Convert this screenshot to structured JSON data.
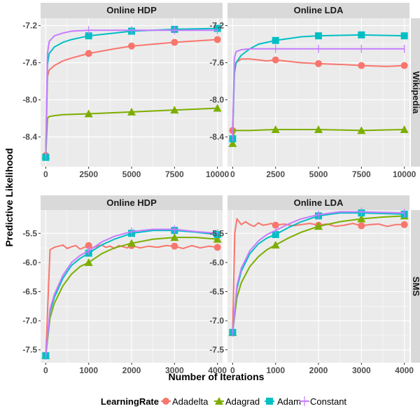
{
  "figure": {
    "xlabel": "Number of Iterations",
    "ylabel": "Predictive Likelihood",
    "legend_title": "LearningRate",
    "legend_position": "bottom"
  },
  "colors": {
    "Adadelta": "#F8766D",
    "Adagrad": "#7CAE00",
    "Adam": "#00BFC4",
    "Constant": "#C77CFF",
    "panel_bg": "#EBEBEB",
    "strip_bg": "#D9D9D9",
    "grid": "#FFFFFF"
  },
  "chart_data": [
    {
      "type": "line",
      "col": 0,
      "row": 0,
      "strip_top": "Online HDP",
      "strip_right": "",
      "xlim": [
        -300,
        10300
      ],
      "ylim": [
        -8.72,
        -7.12
      ],
      "xticks": [
        0,
        2500,
        5000,
        7500,
        10000
      ],
      "xtick_labels": [
        "0",
        "2500",
        "5000",
        "7500",
        "10000"
      ],
      "yticks": [
        -8.4,
        -8.0,
        -7.6,
        -7.2
      ],
      "ytick_labels": [
        "-8.4",
        "-8.0",
        "-7.6",
        "-7.2"
      ],
      "series": [
        {
          "name": "Adadelta",
          "shape": "circle",
          "x": [
            0,
            100,
            200,
            500,
            1000,
            1500,
            2500,
            4000,
            5000,
            7500,
            10000
          ],
          "y": [
            -8.6,
            -7.75,
            -7.68,
            -7.63,
            -7.58,
            -7.55,
            -7.5,
            -7.45,
            -7.42,
            -7.38,
            -7.35
          ],
          "markers_x": [
            0,
            2500,
            5000,
            7500,
            10000
          ]
        },
        {
          "name": "Adagrad",
          "shape": "triangle",
          "x": [
            0,
            100,
            200,
            500,
            1000,
            2500,
            5000,
            7500,
            10000
          ],
          "y": [
            -8.6,
            -8.2,
            -8.18,
            -8.17,
            -8.16,
            -8.15,
            -8.13,
            -8.11,
            -8.09
          ],
          "markers_x": [
            0,
            2500,
            5000,
            7500,
            10000
          ]
        },
        {
          "name": "Adam",
          "shape": "square",
          "x": [
            0,
            100,
            200,
            500,
            1000,
            1500,
            2500,
            4000,
            5000,
            7500,
            10000
          ],
          "y": [
            -8.62,
            -7.62,
            -7.5,
            -7.43,
            -7.38,
            -7.35,
            -7.31,
            -7.28,
            -7.26,
            -7.24,
            -7.23
          ],
          "markers_x": [
            0,
            2500,
            5000,
            7500,
            10000
          ]
        },
        {
          "name": "Constant",
          "shape": "cross",
          "x": [
            0,
            100,
            200,
            500,
            1000,
            1500,
            2500,
            5000,
            7500,
            10000
          ],
          "y": [
            -8.6,
            -7.5,
            -7.37,
            -7.31,
            -7.28,
            -7.26,
            -7.25,
            -7.25,
            -7.25,
            -7.25
          ],
          "markers_x": [
            0,
            2500,
            5000,
            7500,
            10000
          ]
        }
      ]
    },
    {
      "type": "line",
      "col": 1,
      "row": 0,
      "strip_top": "Online LDA",
      "strip_right": "Wikipedia",
      "xlim": [
        -300,
        10300
      ],
      "ylim": [
        -8.72,
        -7.12
      ],
      "xticks": [
        0,
        2500,
        5000,
        7500,
        10000
      ],
      "xtick_labels": [
        "0",
        "2500",
        "5000",
        "7500",
        "10000"
      ],
      "yticks": [
        -8.4,
        -8.0,
        -7.6,
        -7.2
      ],
      "ytick_labels": [
        "-8.4",
        "-8.0",
        "-7.6",
        "-7.2"
      ],
      "series": [
        {
          "name": "Adadelta",
          "shape": "circle",
          "x": [
            0,
            100,
            200,
            500,
            1000,
            1500,
            2000,
            2500,
            4000,
            5000,
            6500,
            7500,
            9000,
            10000
          ],
          "y": [
            -8.33,
            -7.72,
            -7.6,
            -7.56,
            -7.56,
            -7.57,
            -7.58,
            -7.57,
            -7.6,
            -7.61,
            -7.62,
            -7.63,
            -7.64,
            -7.63
          ],
          "markers_x": [
            0,
            2500,
            5000,
            7500,
            10000
          ]
        },
        {
          "name": "Adagrad",
          "shape": "triangle",
          "x": [
            0,
            100,
            200,
            500,
            1000,
            2500,
            5000,
            7500,
            10000
          ],
          "y": [
            -8.47,
            -8.32,
            -8.33,
            -8.33,
            -8.33,
            -8.32,
            -8.32,
            -8.33,
            -8.32
          ],
          "markers_x": [
            0,
            2500,
            5000,
            7500,
            10000
          ]
        },
        {
          "name": "Adam",
          "shape": "square",
          "x": [
            0,
            100,
            200,
            500,
            1000,
            1500,
            2500,
            4000,
            5000,
            7500,
            10000
          ],
          "y": [
            -8.42,
            -7.7,
            -7.6,
            -7.52,
            -7.45,
            -7.4,
            -7.36,
            -7.32,
            -7.31,
            -7.3,
            -7.31
          ],
          "markers_x": [
            0,
            2500,
            5000,
            7500,
            10000
          ]
        },
        {
          "name": "Constant",
          "shape": "cross",
          "x": [
            0,
            100,
            200,
            500,
            1000,
            2500,
            5000,
            7500,
            10000
          ],
          "y": [
            -8.4,
            -7.55,
            -7.48,
            -7.46,
            -7.45,
            -7.45,
            -7.45,
            -7.45,
            -7.45
          ],
          "markers_x": [
            0,
            2500,
            5000,
            7500,
            10000
          ]
        }
      ]
    },
    {
      "type": "line",
      "col": 0,
      "row": 1,
      "strip_top": "Online HDP",
      "strip_right": "",
      "xlim": [
        -120,
        4120
      ],
      "ylim": [
        -7.72,
        -5.1
      ],
      "xticks": [
        0,
        1000,
        2000,
        3000,
        4000
      ],
      "xtick_labels": [
        "0",
        "1000",
        "2000",
        "3000",
        "4000"
      ],
      "yticks": [
        -7.5,
        -7.0,
        -6.5,
        -6.0,
        -5.5
      ],
      "ytick_labels": [
        "-7.5",
        "-7.0",
        "-6.5",
        "-6.0",
        "-5.5"
      ],
      "series": [
        {
          "name": "Adadelta",
          "shape": "circle",
          "x": [
            0,
            100,
            200,
            300,
            400,
            500,
            600,
            700,
            800,
            900,
            1000,
            1100,
            1200,
            1300,
            1400,
            1500,
            1600,
            1700,
            1800,
            1900,
            2000,
            2200,
            2400,
            2600,
            2800,
            3000,
            3200,
            3400,
            3600,
            3800,
            4000
          ],
          "y": [
            -7.6,
            -5.78,
            -5.74,
            -5.72,
            -5.7,
            -5.76,
            -5.73,
            -5.71,
            -5.77,
            -5.74,
            -5.71,
            -5.75,
            -5.72,
            -5.7,
            -5.74,
            -5.72,
            -5.76,
            -5.71,
            -5.73,
            -5.75,
            -5.71,
            -5.75,
            -5.72,
            -5.74,
            -5.71,
            -5.72,
            -5.76,
            -5.71,
            -5.75,
            -5.72,
            -5.74
          ],
          "markers_x": [
            0,
            1000,
            2000,
            3000,
            4000
          ]
        },
        {
          "name": "Adagrad",
          "shape": "triangle",
          "x": [
            0,
            100,
            200,
            400,
            600,
            800,
            1000,
            1300,
            1600,
            2000,
            2500,
            3000,
            3500,
            4000
          ],
          "y": [
            -7.6,
            -6.95,
            -6.7,
            -6.4,
            -6.2,
            -6.07,
            -6.0,
            -5.85,
            -5.75,
            -5.67,
            -5.6,
            -5.57,
            -5.57,
            -5.6
          ],
          "markers_x": [
            0,
            1000,
            2000,
            3000,
            4000
          ]
        },
        {
          "name": "Adam",
          "shape": "square",
          "x": [
            0,
            100,
            200,
            400,
            600,
            800,
            1000,
            1300,
            1600,
            2000,
            2500,
            3000,
            3500,
            4000
          ],
          "y": [
            -7.6,
            -6.85,
            -6.6,
            -6.27,
            -6.05,
            -5.93,
            -5.84,
            -5.7,
            -5.6,
            -5.5,
            -5.45,
            -5.45,
            -5.48,
            -5.52
          ],
          "markers_x": [
            0,
            1000,
            2000,
            3000,
            4000
          ]
        },
        {
          "name": "Constant",
          "shape": "cross",
          "x": [
            0,
            100,
            200,
            400,
            600,
            800,
            1000,
            1300,
            1600,
            2000,
            2500,
            3000,
            3500,
            4000
          ],
          "y": [
            -7.6,
            -6.8,
            -6.55,
            -6.22,
            -6.0,
            -5.88,
            -5.8,
            -5.65,
            -5.55,
            -5.47,
            -5.43,
            -5.43,
            -5.47,
            -5.5
          ],
          "markers_x": [
            0,
            1000,
            2000,
            3000,
            4000
          ]
        }
      ]
    },
    {
      "type": "line",
      "col": 1,
      "row": 1,
      "strip_top": "Online LDA",
      "strip_right": "SMS",
      "xlim": [
        -120,
        4120
      ],
      "ylim": [
        -7.72,
        -5.1
      ],
      "xticks": [
        0,
        1000,
        2000,
        3000,
        4000
      ],
      "xtick_labels": [
        "0",
        "1000",
        "2000",
        "3000",
        "4000"
      ],
      "yticks": [
        -7.5,
        -7.0,
        -6.5,
        -6.0,
        -5.5
      ],
      "ytick_labels": [
        "-7.5",
        "-7.0",
        "-6.5",
        "-6.0",
        "-5.5"
      ],
      "series": [
        {
          "name": "Adadelta",
          "shape": "circle",
          "x": [
            0,
            50,
            100,
            150,
            200,
            300,
            400,
            500,
            600,
            700,
            800,
            900,
            1000,
            1200,
            1400,
            1600,
            1800,
            2000,
            2200,
            2400,
            2600,
            2800,
            3000,
            3200,
            3400,
            3600,
            3800,
            4000
          ],
          "y": [
            -7.2,
            -5.5,
            -5.25,
            -5.3,
            -5.35,
            -5.3,
            -5.35,
            -5.38,
            -5.32,
            -5.36,
            -5.35,
            -5.33,
            -5.36,
            -5.34,
            -5.37,
            -5.35,
            -5.33,
            -5.36,
            -5.34,
            -5.38,
            -5.36,
            -5.33,
            -5.37,
            -5.35,
            -5.34,
            -5.38,
            -5.35,
            -5.35
          ],
          "markers_x": [
            0,
            1000,
            2000,
            3000,
            4000
          ]
        },
        {
          "name": "Adagrad",
          "shape": "triangle",
          "x": [
            0,
            100,
            200,
            400,
            600,
            800,
            1000,
            1300,
            1600,
            2000,
            2500,
            3000,
            3500,
            4000
          ],
          "y": [
            -7.2,
            -6.6,
            -6.35,
            -6.07,
            -5.9,
            -5.78,
            -5.7,
            -5.58,
            -5.48,
            -5.38,
            -5.3,
            -5.25,
            -5.22,
            -5.2
          ],
          "markers_x": [
            0,
            1000,
            2000,
            3000,
            4000
          ]
        },
        {
          "name": "Adam",
          "shape": "square",
          "x": [
            0,
            100,
            200,
            400,
            600,
            800,
            1000,
            1300,
            1600,
            2000,
            2500,
            3000,
            3500,
            4000
          ],
          "y": [
            -7.2,
            -6.45,
            -6.15,
            -5.85,
            -5.68,
            -5.58,
            -5.52,
            -5.4,
            -5.3,
            -5.2,
            -5.15,
            -5.15,
            -5.16,
            -5.17
          ],
          "markers_x": [
            0,
            1000,
            2000,
            3000,
            4000
          ]
        },
        {
          "name": "Constant",
          "shape": "cross",
          "x": [
            0,
            100,
            200,
            400,
            600,
            800,
            1000,
            1300,
            1600,
            2000,
            2500,
            3000,
            3500,
            4000
          ],
          "y": [
            -7.2,
            -6.4,
            -6.1,
            -5.8,
            -5.63,
            -5.52,
            -5.45,
            -5.34,
            -5.25,
            -5.18,
            -5.13,
            -5.13,
            -5.14,
            -5.15
          ],
          "markers_x": [
            0,
            1000,
            2000,
            3000,
            4000
          ]
        }
      ]
    }
  ]
}
